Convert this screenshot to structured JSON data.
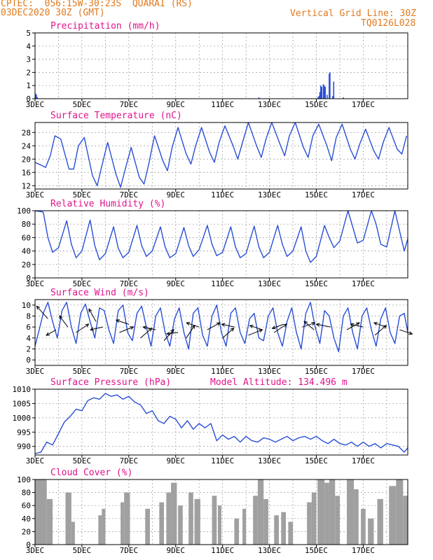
{
  "header": {
    "line1": "CPTEC:  056:15W-30:23S  QUARAI (RS)",
    "line2": "03DEC2020 30Z (GMT)",
    "grid_note": "Vertical Grid Line: 30Z",
    "code": "TQ0126L028"
  },
  "colors": {
    "line": "#2a4fd6",
    "title": "#e0148c",
    "header": "#e07a1f",
    "cloud": "#a0a0a0",
    "grid": "#999999"
  },
  "x_ticks": [
    "3DEC",
    "5DEC",
    "7DEC",
    "9DEC",
    "11DEC",
    "13DEC",
    "15DEC",
    "17DEC"
  ],
  "chart_data": [
    {
      "type": "bar",
      "title": "Precipitation (mm/h)",
      "ylim": [
        0,
        5
      ],
      "yticks": [
        "0",
        "1",
        "2",
        "3",
        "4",
        "5"
      ],
      "x_range_days": [
        3,
        18.9
      ],
      "x": [
        3.02,
        3.06,
        3.1,
        12.55,
        15.07,
        15.11,
        15.15,
        15.19,
        15.23,
        15.3,
        15.34,
        15.38,
        15.46,
        15.55,
        15.58,
        15.7,
        15.74,
        16.15
      ],
      "values": [
        0.4,
        0.3,
        0.1,
        0.1,
        0.1,
        0.2,
        0.5,
        1.0,
        0.9,
        1.1,
        1.0,
        0.9,
        0.3,
        1.9,
        2.0,
        0.2,
        1.3,
        0.1
      ]
    },
    {
      "type": "line",
      "title": "Surface Temperature (nC)",
      "ylim": [
        11,
        31
      ],
      "yticks": [
        "12",
        "16",
        "20",
        "24",
        "28"
      ],
      "x_range_days": [
        3,
        18.9
      ],
      "x": [
        3.0,
        3.25,
        3.45,
        3.65,
        3.85,
        4.1,
        4.45,
        4.65,
        4.85,
        5.1,
        5.45,
        5.65,
        5.85,
        6.1,
        6.45,
        6.65,
        6.85,
        7.1,
        7.45,
        7.65,
        7.85,
        8.1,
        8.45,
        8.65,
        8.85,
        9.1,
        9.45,
        9.65,
        9.85,
        10.1,
        10.45,
        10.65,
        10.85,
        11.1,
        11.45,
        11.65,
        11.85,
        12.1,
        12.45,
        12.65,
        12.85,
        13.1,
        13.45,
        13.65,
        13.85,
        14.1,
        14.45,
        14.65,
        14.85,
        15.1,
        15.45,
        15.65,
        15.85,
        16.1,
        16.45,
        16.65,
        16.85,
        17.1,
        17.45,
        17.65,
        17.85,
        18.1,
        18.45,
        18.65,
        18.85
      ],
      "values": [
        19,
        18.2,
        17.5,
        21,
        27,
        26,
        17,
        17,
        24,
        26.5,
        15,
        12,
        18,
        25,
        15.5,
        11.5,
        17,
        23.5,
        14.5,
        12.5,
        18.5,
        27,
        19.5,
        16.5,
        23.5,
        29.5,
        21.5,
        18.5,
        24,
        29.5,
        22,
        19,
        25,
        30,
        24,
        20,
        25,
        31,
        24,
        20.5,
        26,
        31,
        24.5,
        21,
        27,
        31,
        23.5,
        20.5,
        27,
        30.5,
        24,
        19.5,
        26.5,
        30.5,
        23,
        20,
        24.5,
        29,
        22.5,
        20,
        25,
        29.5,
        23,
        21.5,
        27
      ]
    },
    {
      "type": "line",
      "title": "Relative Humidity (%)",
      "ylim": [
        0,
        100
      ],
      "yticks": [
        "0",
        "20",
        "40",
        "60",
        "80",
        "100"
      ],
      "x_range_days": [
        3,
        18.9
      ],
      "x": [
        3.0,
        3.35,
        3.55,
        3.75,
        4.0,
        4.35,
        4.55,
        4.75,
        5.0,
        5.35,
        5.55,
        5.75,
        6.0,
        6.35,
        6.55,
        6.75,
        7.0,
        7.35,
        7.55,
        7.75,
        8.0,
        8.35,
        8.55,
        8.75,
        9.0,
        9.35,
        9.55,
        9.75,
        10.0,
        10.35,
        10.55,
        10.75,
        11.0,
        11.35,
        11.55,
        11.75,
        12.0,
        12.35,
        12.55,
        12.75,
        13.0,
        13.35,
        13.55,
        13.75,
        14.0,
        14.35,
        14.55,
        14.75,
        15.0,
        15.35,
        15.55,
        15.75,
        16.0,
        16.35,
        16.55,
        16.75,
        17.0,
        17.35,
        17.55,
        17.75,
        18.0,
        18.35,
        18.55,
        18.75,
        18.9
      ],
      "values": [
        100,
        98,
        60,
        38,
        45,
        85,
        50,
        30,
        40,
        86,
        48,
        27,
        36,
        76,
        44,
        30,
        38,
        78,
        48,
        32,
        40,
        76,
        46,
        30,
        36,
        75,
        48,
        32,
        42,
        78,
        50,
        33,
        38,
        76,
        46,
        30,
        36,
        77,
        46,
        30,
        38,
        78,
        50,
        32,
        40,
        76,
        40,
        23,
        32,
        78,
        60,
        45,
        55,
        100,
        76,
        52,
        56,
        100,
        80,
        50,
        46,
        100,
        70,
        40,
        58
      ]
    },
    {
      "type": "line",
      "title": "Surface Wind (m/s)",
      "ylim": [
        -1,
        11
      ],
      "yticks": [
        "0",
        "2",
        "4",
        "6",
        "8",
        "10"
      ],
      "x_range_days": [
        3,
        18.9
      ],
      "x": [
        3.0,
        3.15,
        3.35,
        3.55,
        3.75,
        3.95,
        4.15,
        4.35,
        4.55,
        4.75,
        4.95,
        5.15,
        5.35,
        5.55,
        5.75,
        5.95,
        6.15,
        6.35,
        6.55,
        6.75,
        6.95,
        7.15,
        7.35,
        7.55,
        7.75,
        7.95,
        8.15,
        8.35,
        8.55,
        8.75,
        8.95,
        9.15,
        9.35,
        9.55,
        9.75,
        9.95,
        10.15,
        10.35,
        10.55,
        10.75,
        10.95,
        11.15,
        11.35,
        11.55,
        11.75,
        11.95,
        12.15,
        12.35,
        12.55,
        12.75,
        12.95,
        13.15,
        13.35,
        13.55,
        13.75,
        13.95,
        14.15,
        14.35,
        14.55,
        14.75,
        14.95,
        15.15,
        15.35,
        15.55,
        15.75,
        15.95,
        16.15,
        16.35,
        16.55,
        16.75,
        16.95,
        17.15,
        17.35,
        17.55,
        17.75,
        17.95,
        18.15,
        18.35,
        18.55,
        18.75,
        18.9
      ],
      "values": [
        2.5,
        5,
        8.5,
        10.5,
        7,
        4,
        9,
        10.5,
        6,
        3,
        8.5,
        10.2,
        7,
        4,
        9.5,
        9,
        5.5,
        3,
        9,
        10,
        5,
        3.5,
        8.5,
        9.8,
        6,
        2.5,
        8,
        9.5,
        5,
        2.5,
        7.5,
        9.5,
        5,
        2,
        8.5,
        9.5,
        4.5,
        2.5,
        8,
        10,
        5,
        2.5,
        8.5,
        9.5,
        5,
        3,
        7.5,
        8.5,
        4,
        3.5,
        8,
        9.5,
        5,
        2.5,
        7,
        9.5,
        5,
        2,
        8.5,
        10.5,
        6,
        3,
        9,
        8,
        4,
        1.5,
        8,
        9.5,
        5,
        2,
        8,
        9.5,
        5.5,
        2.5,
        7.5,
        9.5,
        5,
        3,
        8,
        8.5,
        5
      ],
      "arrows": [
        {
          "day": 3.55,
          "speed": 7.5,
          "u": -0.8,
          "v": 0.9
        },
        {
          "day": 3.9,
          "speed": 5.5,
          "u": -0.7,
          "v": -0.4
        },
        {
          "day": 4.4,
          "speed": 6.0,
          "u": -0.6,
          "v": 0.8
        },
        {
          "day": 4.75,
          "speed": 5.0,
          "u": 0.9,
          "v": 0.6
        },
        {
          "day": 5.6,
          "speed": 7.0,
          "u": -0.5,
          "v": 0.9
        },
        {
          "day": 5.9,
          "speed": 6.0,
          "u": -0.9,
          "v": -0.2
        },
        {
          "day": 6.6,
          "speed": 5.0,
          "u": 1.0,
          "v": 0.4
        },
        {
          "day": 7.0,
          "speed": 6.5,
          "u": -0.9,
          "v": 0.3
        },
        {
          "day": 7.5,
          "speed": 4.0,
          "u": 0.8,
          "v": 0.7
        },
        {
          "day": 8.15,
          "speed": 5.5,
          "u": -0.9,
          "v": 0.2
        },
        {
          "day": 8.5,
          "speed": 3.5,
          "u": 0.7,
          "v": 0.8
        },
        {
          "day": 9.1,
          "speed": 5.0,
          "u": -0.8,
          "v": -0.1
        },
        {
          "day": 9.45,
          "speed": 4.0,
          "u": 0.6,
          "v": 0.9
        },
        {
          "day": 10.0,
          "speed": 6.0,
          "u": -0.9,
          "v": 0.3
        },
        {
          "day": 10.35,
          "speed": 5.5,
          "u": 0.9,
          "v": 0.5
        },
        {
          "day": 11.0,
          "speed": 4.0,
          "u": 0.8,
          "v": 0.7
        },
        {
          "day": 11.5,
          "speed": 6.0,
          "u": -0.9,
          "v": 0.2
        },
        {
          "day": 12.1,
          "speed": 4.5,
          "u": 1.0,
          "v": 0.4
        },
        {
          "day": 12.7,
          "speed": 5.5,
          "u": -0.9,
          "v": 0.3
        },
        {
          "day": 13.2,
          "speed": 5.0,
          "u": 0.9,
          "v": 0.6
        },
        {
          "day": 13.6,
          "speed": 6.5,
          "u": -0.8,
          "v": -0.3
        },
        {
          "day": 14.4,
          "speed": 6.0,
          "u": 0.9,
          "v": 0.3
        },
        {
          "day": 14.9,
          "speed": 5.5,
          "u": -0.7,
          "v": 0.6
        },
        {
          "day": 15.6,
          "speed": 6.0,
          "u": -1.0,
          "v": 0.2
        },
        {
          "day": 16.3,
          "speed": 5.5,
          "u": 0.9,
          "v": 0.5
        },
        {
          "day": 17.0,
          "speed": 6.0,
          "u": -0.9,
          "v": 0.2
        },
        {
          "day": 17.5,
          "speed": 4.5,
          "u": 0.8,
          "v": 0.7
        },
        {
          "day": 18.0,
          "speed": 6.0,
          "u": -0.9,
          "v": 0.3
        },
        {
          "day": 18.55,
          "speed": 5.5,
          "u": 0.9,
          "v": -0.3
        }
      ]
    },
    {
      "type": "line",
      "title": "Surface Pressure (hPa)",
      "annotation": "Model Altitude: 134.496 m",
      "ylim": [
        987,
        1010
      ],
      "yticks": [
        "990",
        "995",
        "1000",
        "1005",
        "1010"
      ],
      "x_range_days": [
        3,
        18.9
      ],
      "x": [
        3.0,
        3.25,
        3.5,
        3.75,
        4.0,
        4.25,
        4.5,
        4.75,
        5.0,
        5.25,
        5.5,
        5.75,
        6.0,
        6.25,
        6.5,
        6.75,
        7.0,
        7.25,
        7.5,
        7.75,
        8.0,
        8.25,
        8.5,
        8.75,
        9.0,
        9.25,
        9.5,
        9.75,
        10.0,
        10.25,
        10.5,
        10.75,
        11.0,
        11.25,
        11.5,
        11.75,
        12.0,
        12.25,
        12.5,
        12.75,
        13.0,
        13.25,
        13.5,
        13.75,
        14.0,
        14.25,
        14.5,
        14.75,
        15.0,
        15.25,
        15.5,
        15.75,
        16.0,
        16.25,
        16.5,
        16.75,
        17.0,
        17.25,
        17.5,
        17.75,
        18.0,
        18.25,
        18.5,
        18.75,
        18.9
      ],
      "values": [
        987.5,
        988,
        991.5,
        990.5,
        994.5,
        998.5,
        1000.5,
        1003,
        1002.5,
        1006,
        1007,
        1006.5,
        1008.5,
        1007.5,
        1008,
        1006.5,
        1007.5,
        1005.5,
        1004.5,
        1001.5,
        1002.5,
        999,
        998,
        1000.5,
        999.5,
        996.5,
        999,
        996,
        998,
        996.5,
        998,
        992,
        994,
        992.5,
        993.5,
        991.5,
        993.5,
        992,
        991.5,
        993,
        992.5,
        991.5,
        992.5,
        993.5,
        992,
        993,
        993.5,
        992.5,
        993.5,
        992,
        991,
        992.5,
        991,
        990.5,
        991.5,
        990,
        991.5,
        990,
        991,
        989.5,
        991,
        990.5,
        990,
        988,
        989.5
      ]
    },
    {
      "type": "bar",
      "title": "Cloud Cover (%)",
      "ylim": [
        0,
        100
      ],
      "yticks": [
        "0",
        "20",
        "40",
        "60",
        "80",
        "100"
      ],
      "x_range_days": [
        3,
        18.9
      ],
      "segments": [
        {
          "day": 3.0,
          "end": 3.5,
          "value": 100
        },
        {
          "day": 3.5,
          "end": 3.75,
          "value": 70
        },
        {
          "day": 4.3,
          "end": 4.55,
          "value": 80
        },
        {
          "day": 4.55,
          "end": 4.7,
          "value": 35
        },
        {
          "day": 5.7,
          "end": 5.85,
          "value": 45
        },
        {
          "day": 5.85,
          "end": 6.0,
          "value": 55
        },
        {
          "day": 6.65,
          "end": 6.8,
          "value": 65
        },
        {
          "day": 6.8,
          "end": 7.05,
          "value": 80
        },
        {
          "day": 7.7,
          "end": 7.9,
          "value": 55
        },
        {
          "day": 8.3,
          "end": 8.5,
          "value": 65
        },
        {
          "day": 8.6,
          "end": 8.8,
          "value": 80
        },
        {
          "day": 8.8,
          "end": 9.05,
          "value": 95
        },
        {
          "day": 9.1,
          "end": 9.3,
          "value": 60
        },
        {
          "day": 9.55,
          "end": 9.75,
          "value": 80
        },
        {
          "day": 9.8,
          "end": 10.05,
          "value": 70
        },
        {
          "day": 10.55,
          "end": 10.75,
          "value": 75
        },
        {
          "day": 10.8,
          "end": 10.95,
          "value": 60
        },
        {
          "day": 11.5,
          "end": 11.7,
          "value": 40
        },
        {
          "day": 11.85,
          "end": 12.0,
          "value": 55
        },
        {
          "day": 12.3,
          "end": 12.5,
          "value": 75
        },
        {
          "day": 12.5,
          "end": 12.75,
          "value": 100
        },
        {
          "day": 12.75,
          "end": 12.95,
          "value": 70
        },
        {
          "day": 13.2,
          "end": 13.4,
          "value": 45
        },
        {
          "day": 13.5,
          "end": 13.7,
          "value": 50
        },
        {
          "day": 13.8,
          "end": 14.0,
          "value": 35
        },
        {
          "day": 14.6,
          "end": 14.8,
          "value": 65
        },
        {
          "day": 14.8,
          "end": 15.0,
          "value": 80
        },
        {
          "day": 15.05,
          "end": 15.35,
          "value": 100
        },
        {
          "day": 15.35,
          "end": 15.55,
          "value": 95
        },
        {
          "day": 15.55,
          "end": 15.8,
          "value": 100
        },
        {
          "day": 15.8,
          "end": 16.0,
          "value": 75
        },
        {
          "day": 16.3,
          "end": 16.6,
          "value": 100
        },
        {
          "day": 16.6,
          "end": 16.8,
          "value": 85
        },
        {
          "day": 16.9,
          "end": 17.1,
          "value": 55
        },
        {
          "day": 17.2,
          "end": 17.45,
          "value": 40
        },
        {
          "day": 17.6,
          "end": 17.85,
          "value": 70
        },
        {
          "day": 18.1,
          "end": 18.4,
          "value": 90
        },
        {
          "day": 18.4,
          "end": 18.7,
          "value": 100
        },
        {
          "day": 18.7,
          "end": 18.9,
          "value": 75
        }
      ]
    }
  ]
}
